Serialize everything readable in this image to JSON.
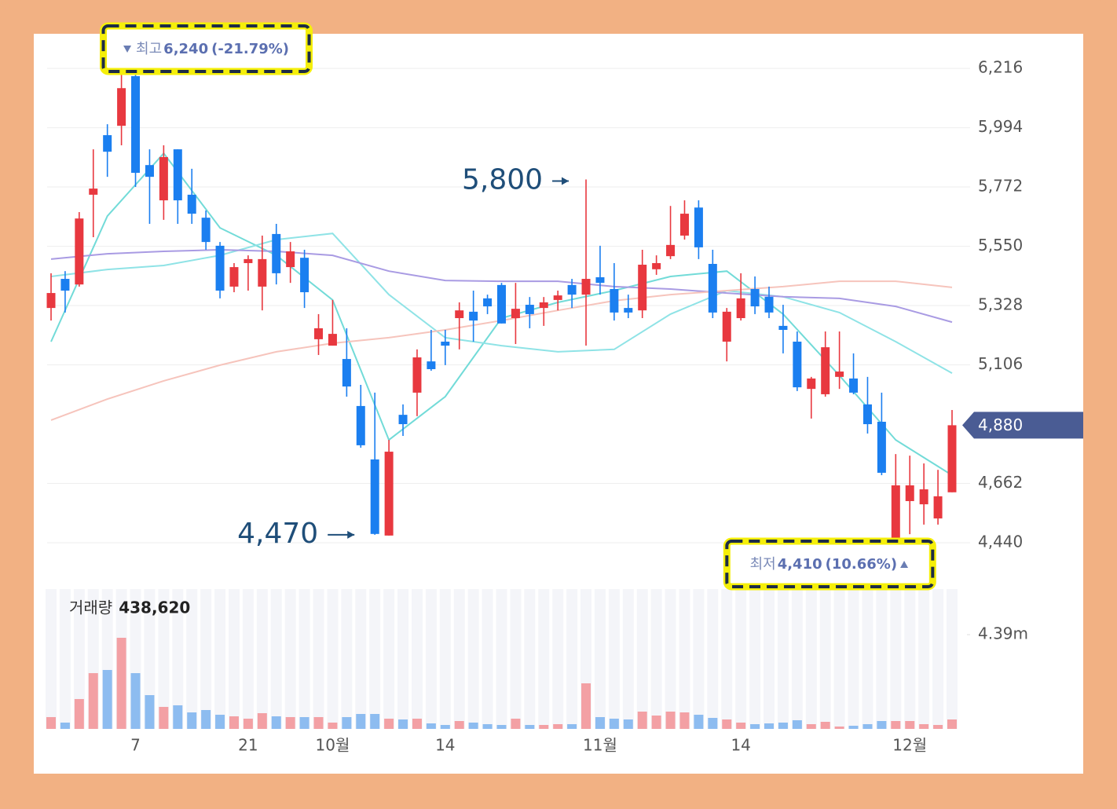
{
  "chart_data": {
    "type": "candlestick",
    "categories": [
      null,
      null,
      null,
      null,
      null,
      null,
      "7",
      null,
      null,
      null,
      null,
      null,
      null,
      null,
      "21",
      null,
      null,
      null,
      null,
      null,
      "10월",
      null,
      null,
      null,
      null,
      null,
      null,
      null,
      "14",
      null,
      null,
      null,
      null,
      null,
      null,
      null,
      null,
      null,
      null,
      "11월",
      null,
      null,
      null,
      null,
      null,
      null,
      null,
      null,
      null,
      "14",
      null,
      null,
      null,
      null,
      null,
      null,
      null,
      null,
      null,
      null,
      null,
      "12월",
      null,
      null,
      null
    ],
    "open": [
      5319,
      5428,
      5407,
      5743,
      5966,
      6001,
      6187,
      5854,
      5722,
      5913,
      5743,
      5657,
      5552,
      5399,
      5487,
      5399,
      5596,
      5472,
      5507,
      5202,
      5178,
      5128,
      4952,
      4752,
      4467,
      4919,
      5002,
      5119,
      5193,
      5281,
      5305,
      5355,
      5405,
      5281,
      5331,
      5319,
      5349,
      5405,
      5369,
      5434,
      5390,
      5319,
      5310,
      5464,
      5513,
      5590,
      5695,
      5484,
      5193,
      5281,
      5390,
      5361,
      5252,
      5193,
      5016,
      4996,
      5061,
      5055,
      4958,
      4893,
      4440,
      4596,
      4584,
      4531,
      4629
    ],
    "high": [
      5449,
      5457,
      5678,
      5913,
      6007,
      6192,
      6240,
      5913,
      5928,
      5913,
      5840,
      5684,
      5566,
      5487,
      5516,
      5590,
      5634,
      5566,
      5537,
      5296,
      5349,
      5243,
      5031,
      5002,
      4825,
      4958,
      5164,
      5237,
      5237,
      5340,
      5384,
      5369,
      5413,
      5413,
      5360,
      5360,
      5384,
      5428,
      5800,
      5552,
      5487,
      5369,
      5537,
      5516,
      5701,
      5722,
      5722,
      5537,
      5319,
      5449,
      5437,
      5399,
      5331,
      5231,
      5061,
      5231,
      5231,
      5149,
      5061,
      5002,
      4772,
      4766,
      4737,
      4713,
      4937
    ],
    "low": [
      5272,
      5302,
      5399,
      5584,
      5810,
      5928,
      5772,
      5634,
      5649,
      5634,
      5634,
      5537,
      5355,
      5378,
      5384,
      5310,
      5407,
      5413,
      5319,
      5143,
      5178,
      4987,
      4796,
      4470,
      4467,
      4840,
      4914,
      5084,
      5105,
      5164,
      5193,
      5296,
      5261,
      5184,
      5243,
      5252,
      5310,
      5319,
      5178,
      5369,
      5272,
      5281,
      5281,
      5443,
      5502,
      5575,
      5502,
      5281,
      5119,
      5272,
      5296,
      5281,
      5149,
      5008,
      4905,
      4987,
      5016,
      4996,
      4849,
      4693,
      4410,
      4472,
      4508,
      4508,
      4629
    ],
    "close": [
      5375,
      5384,
      5654,
      5766,
      5904,
      6142,
      5825,
      5810,
      5884,
      5722,
      5672,
      5566,
      5384,
      5472,
      5502,
      5502,
      5449,
      5531,
      5378,
      5243,
      5222,
      5025,
      4805,
      4473,
      4781,
      4884,
      5134,
      5090,
      5178,
      5310,
      5272,
      5325,
      5261,
      5316,
      5296,
      5340,
      5366,
      5369,
      5428,
      5413,
      5302,
      5302,
      5481,
      5487,
      5555,
      5672,
      5546,
      5302,
      5305,
      5355,
      5325,
      5302,
      5237,
      5022,
      5055,
      5172,
      5081,
      5002,
      4884,
      4702,
      4655,
      4655,
      4640,
      4614,
      4880
    ],
    "up_color": "#e8383f",
    "down_color": "#1b7ff0",
    "ylim": [
      4296,
      6325
    ],
    "yticks": [
      {
        "value": 6216,
        "label": "6,216"
      },
      {
        "value": 5994,
        "label": "5,994"
      },
      {
        "value": 5772,
        "label": "5,772"
      },
      {
        "value": 5550,
        "label": "5,550"
      },
      {
        "value": 5328,
        "label": "5,328"
      },
      {
        "value": 5106,
        "label": "5,106"
      },
      {
        "value": 4662,
        "label": "4,662"
      },
      {
        "value": 4440,
        "label": "4,440"
      }
    ],
    "grid": true,
    "current_price": {
      "value": 4880,
      "label": "4,880"
    },
    "moving_averages": [
      {
        "color": "#72dbd8",
        "x": [
          0,
          4,
          8,
          12,
          16,
          20,
          24,
          28,
          32,
          36,
          40,
          44,
          48,
          52,
          56,
          60,
          64
        ],
        "values": [
          5193,
          5663,
          5898,
          5619,
          5516,
          5349,
          4825,
          4987,
          5281,
          5340,
          5384,
          5437,
          5457,
          5296,
          5066,
          4825,
          4693
        ]
      },
      {
        "color": "#8fe3e6",
        "x": [
          0,
          4,
          8,
          12,
          16,
          20,
          24,
          28,
          32,
          36,
          40,
          44,
          48,
          52,
          56,
          60,
          64
        ],
        "values": [
          5437,
          5463,
          5478,
          5516,
          5575,
          5598,
          5369,
          5208,
          5178,
          5155,
          5164,
          5296,
          5384,
          5361,
          5302,
          5193,
          5075
        ]
      },
      {
        "color": "#a99be3",
        "x": [
          0,
          4,
          8,
          12,
          16,
          20,
          24,
          28,
          32,
          36,
          40,
          44,
          48,
          52,
          56,
          60,
          64
        ],
        "values": [
          5502,
          5522,
          5531,
          5537,
          5531,
          5516,
          5457,
          5422,
          5419,
          5419,
          5399,
          5390,
          5375,
          5361,
          5355,
          5325,
          5266
        ]
      },
      {
        "color": "#f6c4bc",
        "x": [
          0,
          4,
          8,
          12,
          16,
          20,
          24,
          28,
          32,
          36,
          40,
          44,
          48,
          52,
          56,
          60,
          64
        ],
        "values": [
          4899,
          4978,
          5046,
          5105,
          5155,
          5187,
          5208,
          5237,
          5272,
          5310,
          5346,
          5369,
          5384,
          5399,
          5419,
          5419,
          5396
        ]
      }
    ],
    "annotations": [
      {
        "value": 5800,
        "label": "5,800"
      },
      {
        "value": 4470,
        "label": "4,470"
      }
    ],
    "high_marker": {
      "label": "최고",
      "value": 6240,
      "value_label": "6,240",
      "change": -21.79,
      "change_label": "(-21.79%)"
    },
    "low_marker": {
      "label": "최저",
      "value": 4410,
      "value_label": "4,410",
      "change": 10.66,
      "change_label": "(10.66%)"
    },
    "volume": {
      "name": "거래량",
      "current_label": "438,620",
      "values": [
        549000,
        293000,
        1391000,
        2597000,
        2744000,
        4244000,
        2597000,
        1573000,
        1024000,
        1098000,
        768000,
        878000,
        659000,
        585000,
        476000,
        732000,
        585000,
        549000,
        549000,
        549000,
        293000,
        549000,
        695000,
        695000,
        476000,
        439000,
        476000,
        256000,
        183000,
        366000,
        293000,
        220000,
        183000,
        476000,
        183000,
        183000,
        220000,
        220000,
        2122000,
        549000,
        476000,
        439000,
        805000,
        622000,
        805000,
        768000,
        659000,
        512000,
        439000,
        293000,
        220000,
        256000,
        293000,
        402000,
        220000,
        329000,
        110000,
        146000,
        220000,
        366000,
        366000,
        366000,
        220000,
        183000,
        438620
      ],
      "ylim": [
        0,
        6330000
      ],
      "yticks": [
        {
          "value": 4390000,
          "label": "4.39m"
        }
      ],
      "up_color": "#f3a0a4",
      "down_color": "#8dbcf0"
    }
  }
}
